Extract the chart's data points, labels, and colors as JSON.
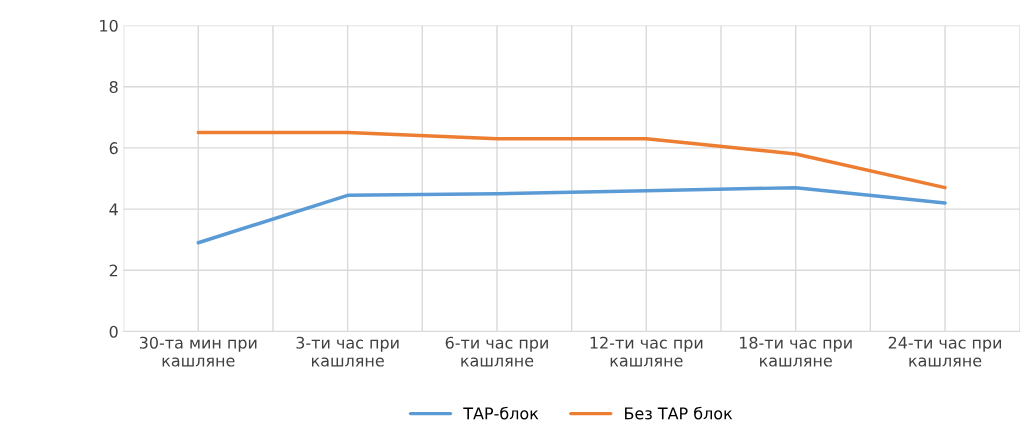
{
  "chart_data": {
    "type": "line",
    "categories": [
      "30-та мин при кашляне",
      "3-ти час при кашляне",
      "6-ти час при кашляне",
      "12-ти час при кашляне",
      "18-ти час при кашляне",
      "24-ти час при кашляне"
    ],
    "series": [
      {
        "name": "ТАР-блок",
        "color": "#5b9bd5",
        "values": [
          2.9,
          4.45,
          4.5,
          4.6,
          4.7,
          4.2
        ]
      },
      {
        "name": "Без ТАР блок",
        "color": "#ed7d31",
        "values": [
          6.5,
          6.5,
          6.3,
          6.3,
          5.8,
          4.7
        ]
      }
    ],
    "ylim": [
      0,
      10
    ],
    "yticks": [
      0,
      2,
      4,
      6,
      8,
      10
    ],
    "grid": true,
    "legend": "bottom",
    "marker": "none",
    "line_style": "solid"
  }
}
